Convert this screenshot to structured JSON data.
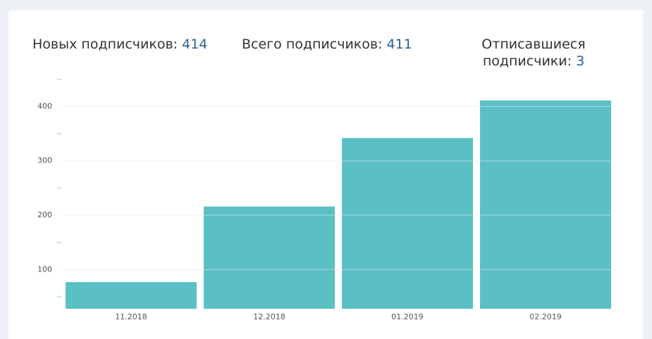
{
  "stats": [
    {
      "label": "Новых подписчиков:",
      "value": "414"
    },
    {
      "label": "Всего подписчиков:",
      "value": "411"
    },
    {
      "label": "Отписавшиеся подписчики:",
      "value": "3"
    }
  ],
  "chart_data": {
    "type": "bar",
    "categories": [
      "11.2018",
      "12.2018",
      "01.2019",
      "02.2019"
    ],
    "values": [
      77,
      216,
      342,
      411
    ],
    "color": "#5bc0c6",
    "ylim": [
      28,
      460
    ],
    "yticks": [
      100,
      200,
      300,
      400
    ],
    "minor_yticks": [
      50,
      150,
      250,
      350,
      450
    ],
    "grid": true
  }
}
